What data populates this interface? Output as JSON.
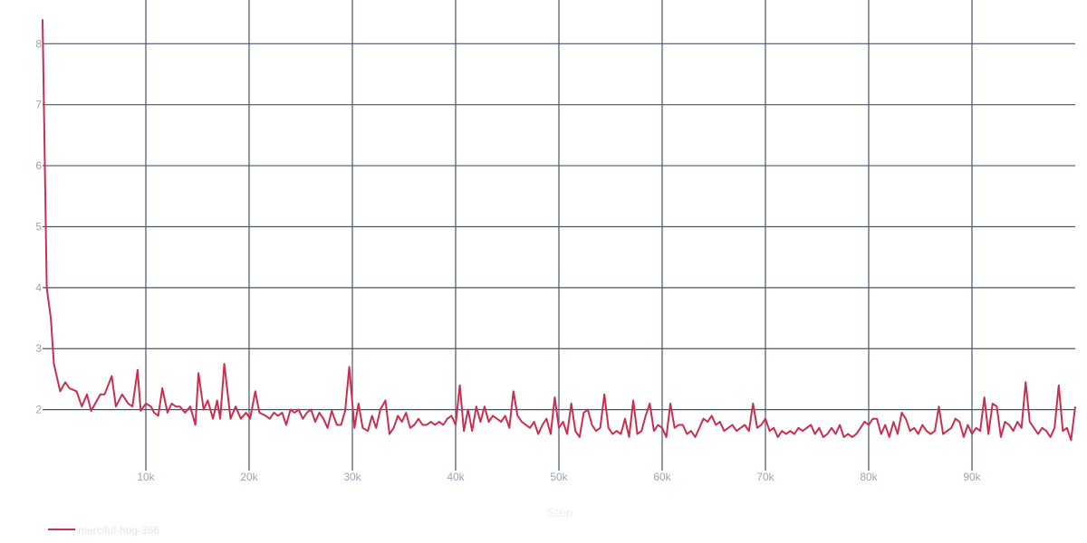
{
  "chart_data": {
    "type": "line",
    "xlabel": "Step",
    "ylabel": "",
    "xlim": [
      0,
      100000
    ],
    "ylim": [
      1.0,
      8.45
    ],
    "x_ticks": [
      10000,
      20000,
      30000,
      40000,
      50000,
      60000,
      70000,
      80000,
      90000
    ],
    "x_tick_labels": [
      "10k",
      "20k",
      "30k",
      "40k",
      "50k",
      "60k",
      "70k",
      "80k",
      "90k"
    ],
    "y_ticks": [
      2,
      3,
      4,
      5,
      6,
      7,
      8
    ],
    "y_tick_labels": [
      "2",
      "3",
      "4",
      "5",
      "6",
      "7",
      "8"
    ],
    "grid": true,
    "legend_position": "bottom-left",
    "colors": {
      "series": "#c7304f",
      "grid": "#4a5568",
      "tick_text": "#9aa6b7"
    },
    "series": [
      {
        "name": "merciful-hog-366",
        "x": [
          0,
          200,
          400,
          800,
          1100,
          1700,
          2200,
          2600,
          3300,
          3800,
          4300,
          4700,
          5100,
          5600,
          6000,
          6700,
          7100,
          7700,
          8300,
          8700,
          9200,
          9500,
          10000,
          10500,
          10800,
          11200,
          11600,
          12100,
          12500,
          12900,
          13300,
          13800,
          14300,
          14800,
          15100,
          15600,
          16000,
          16500,
          16900,
          17200,
          17600,
          18200,
          18700,
          19200,
          19700,
          20100,
          20600,
          21000,
          21600,
          22000,
          22400,
          22800,
          23200,
          23600,
          24000,
          24400,
          24800,
          25200,
          25600,
          26000,
          26400,
          26800,
          27200,
          27600,
          28000,
          28500,
          28900,
          29300,
          29700,
          30200,
          30600,
          31000,
          31500,
          31900,
          32300,
          32700,
          33200,
          33600,
          34000,
          34400,
          34800,
          35200,
          35600,
          36000,
          36400,
          36800,
          37200,
          37600,
          38000,
          38400,
          38800,
          39200,
          39600,
          40000,
          40400,
          40800,
          41200,
          41600,
          42000,
          42400,
          42800,
          43200,
          43600,
          44000,
          44400,
          44800,
          45200,
          45600,
          46000,
          46400,
          46800,
          47200,
          47600,
          48000,
          48400,
          48800,
          49200,
          49600,
          50000,
          50400,
          50800,
          51200,
          51600,
          52000,
          52400,
          52800,
          53200,
          53600,
          54000,
          54400,
          54800,
          55200,
          55600,
          56000,
          56400,
          56800,
          57200,
          57600,
          58000,
          58400,
          58800,
          59200,
          59600,
          60000,
          60400,
          60800,
          61200,
          61600,
          62000,
          62400,
          62800,
          63200,
          63600,
          64000,
          64400,
          64800,
          65200,
          65600,
          66000,
          66400,
          66800,
          67200,
          67600,
          68000,
          68400,
          68800,
          69200,
          69600,
          70000,
          70400,
          70800,
          71200,
          71600,
          72000,
          72400,
          72800,
          73200,
          73600,
          74000,
          74400,
          74800,
          75200,
          75600,
          76000,
          76400,
          76800,
          77200,
          77600,
          78000,
          78400,
          78800,
          79200,
          79600,
          80000,
          80400,
          80800,
          81200,
          81600,
          82000,
          82400,
          82800,
          83200,
          83600,
          84000,
          84400,
          84800,
          85200,
          85600,
          86000,
          86400,
          86800,
          87200,
          87600,
          88000,
          88400,
          88800,
          89200,
          89600,
          90000,
          90400,
          90800,
          91200,
          91600,
          92000,
          92400,
          92800,
          93200,
          93600,
          94000,
          94400,
          94800,
          95200,
          95600,
          96000,
          96400,
          96800,
          97200,
          97600,
          98000,
          98400,
          98800,
          99200,
          99600,
          100000
        ],
        "y": [
          8.4,
          6.2,
          4.0,
          3.5,
          2.75,
          2.3,
          2.45,
          2.35,
          2.3,
          2.05,
          2.25,
          1.98,
          2.1,
          2.25,
          2.25,
          2.55,
          2.05,
          2.25,
          2.1,
          2.05,
          2.65,
          1.98,
          2.1,
          2.05,
          1.95,
          1.9,
          2.35,
          1.95,
          2.1,
          2.05,
          2.05,
          1.95,
          2.05,
          1.75,
          2.6,
          2.0,
          2.15,
          1.85,
          2.15,
          1.85,
          2.75,
          1.85,
          2.05,
          1.85,
          1.95,
          1.85,
          2.3,
          1.95,
          1.9,
          1.85,
          1.95,
          1.9,
          1.95,
          1.75,
          2.0,
          1.95,
          2.0,
          1.85,
          1.95,
          2.0,
          1.8,
          1.95,
          1.85,
          1.7,
          1.98,
          1.75,
          1.75,
          1.98,
          2.7,
          1.7,
          2.1,
          1.7,
          1.65,
          1.9,
          1.7,
          2.0,
          2.15,
          1.6,
          1.7,
          1.9,
          1.8,
          1.95,
          1.7,
          1.75,
          1.85,
          1.75,
          1.75,
          1.8,
          1.75,
          1.8,
          1.75,
          1.85,
          1.9,
          1.75,
          2.4,
          1.65,
          2.0,
          1.65,
          2.05,
          1.8,
          2.05,
          1.8,
          1.9,
          1.85,
          1.8,
          1.9,
          1.7,
          2.3,
          1.9,
          1.8,
          1.75,
          1.7,
          1.8,
          1.6,
          1.75,
          1.85,
          1.6,
          2.2,
          1.7,
          1.8,
          1.6,
          2.1,
          1.65,
          1.55,
          1.95,
          2.0,
          1.75,
          1.65,
          1.7,
          2.25,
          1.7,
          1.6,
          1.65,
          1.6,
          1.85,
          1.55,
          2.15,
          1.6,
          1.65,
          1.9,
          2.1,
          1.65,
          1.75,
          1.7,
          1.55,
          2.1,
          1.7,
          1.75,
          1.75,
          1.6,
          1.65,
          1.55,
          1.7,
          1.85,
          1.8,
          1.9,
          1.75,
          1.8,
          1.65,
          1.7,
          1.75,
          1.65,
          1.7,
          1.75,
          1.65,
          2.1,
          1.7,
          1.75,
          1.85,
          1.65,
          1.7,
          1.55,
          1.65,
          1.6,
          1.65,
          1.6,
          1.7,
          1.65,
          1.7,
          1.75,
          1.6,
          1.7,
          1.55,
          1.6,
          1.7,
          1.6,
          1.75,
          1.55,
          1.6,
          1.55,
          1.6,
          1.7,
          1.8,
          1.75,
          1.85,
          1.85,
          1.6,
          1.75,
          1.55,
          1.8,
          1.6,
          1.95,
          1.85,
          1.65,
          1.7,
          1.6,
          1.75,
          1.65,
          1.6,
          1.65,
          2.05,
          1.6,
          1.65,
          1.7,
          1.85,
          1.8,
          1.55,
          1.75,
          1.6,
          1.7,
          1.65,
          2.2,
          1.6,
          2.1,
          2.05,
          1.55,
          1.8,
          1.75,
          1.65,
          1.8,
          1.7,
          2.45,
          1.8,
          1.7,
          1.6,
          1.7,
          1.65,
          1.55,
          1.7,
          2.4,
          1.65,
          1.7,
          1.5,
          2.05
        ]
      }
    ]
  }
}
